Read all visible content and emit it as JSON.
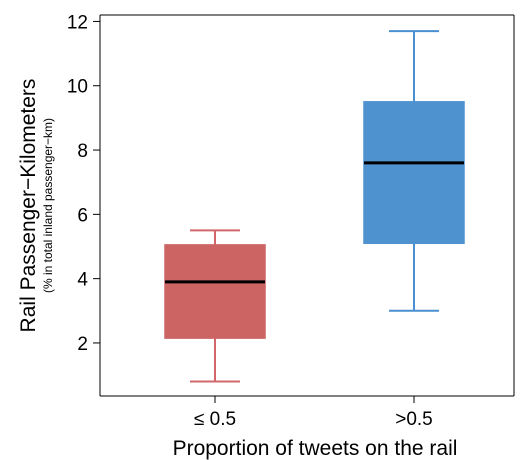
{
  "chart_data": {
    "type": "box",
    "title": "",
    "xlabel": "Proportion of tweets on the rail",
    "ylabel": "Rail Passenger−Kilometers",
    "ylabel_note": "(% in total inland passenger−km)",
    "ylim": [
      0.35,
      12.2
    ],
    "yticks": [
      2,
      4,
      6,
      8,
      10,
      12
    ],
    "categories": [
      "≤ 0.5",
      ">0.5"
    ],
    "boxes": [
      {
        "category": "≤ 0.5",
        "min": 0.8,
        "q1": 2.15,
        "median": 3.9,
        "q3": 5.05,
        "max": 5.5,
        "color": "#cd6464",
        "whisker_color": "#d2676b"
      },
      {
        "category": ">0.5",
        "min": 3.0,
        "q1": 5.1,
        "median": 7.6,
        "q3": 9.5,
        "max": 11.7,
        "color": "#4f92d0",
        "whisker_color": "#4a8fd0"
      }
    ],
    "grid": false,
    "legend": "none"
  }
}
